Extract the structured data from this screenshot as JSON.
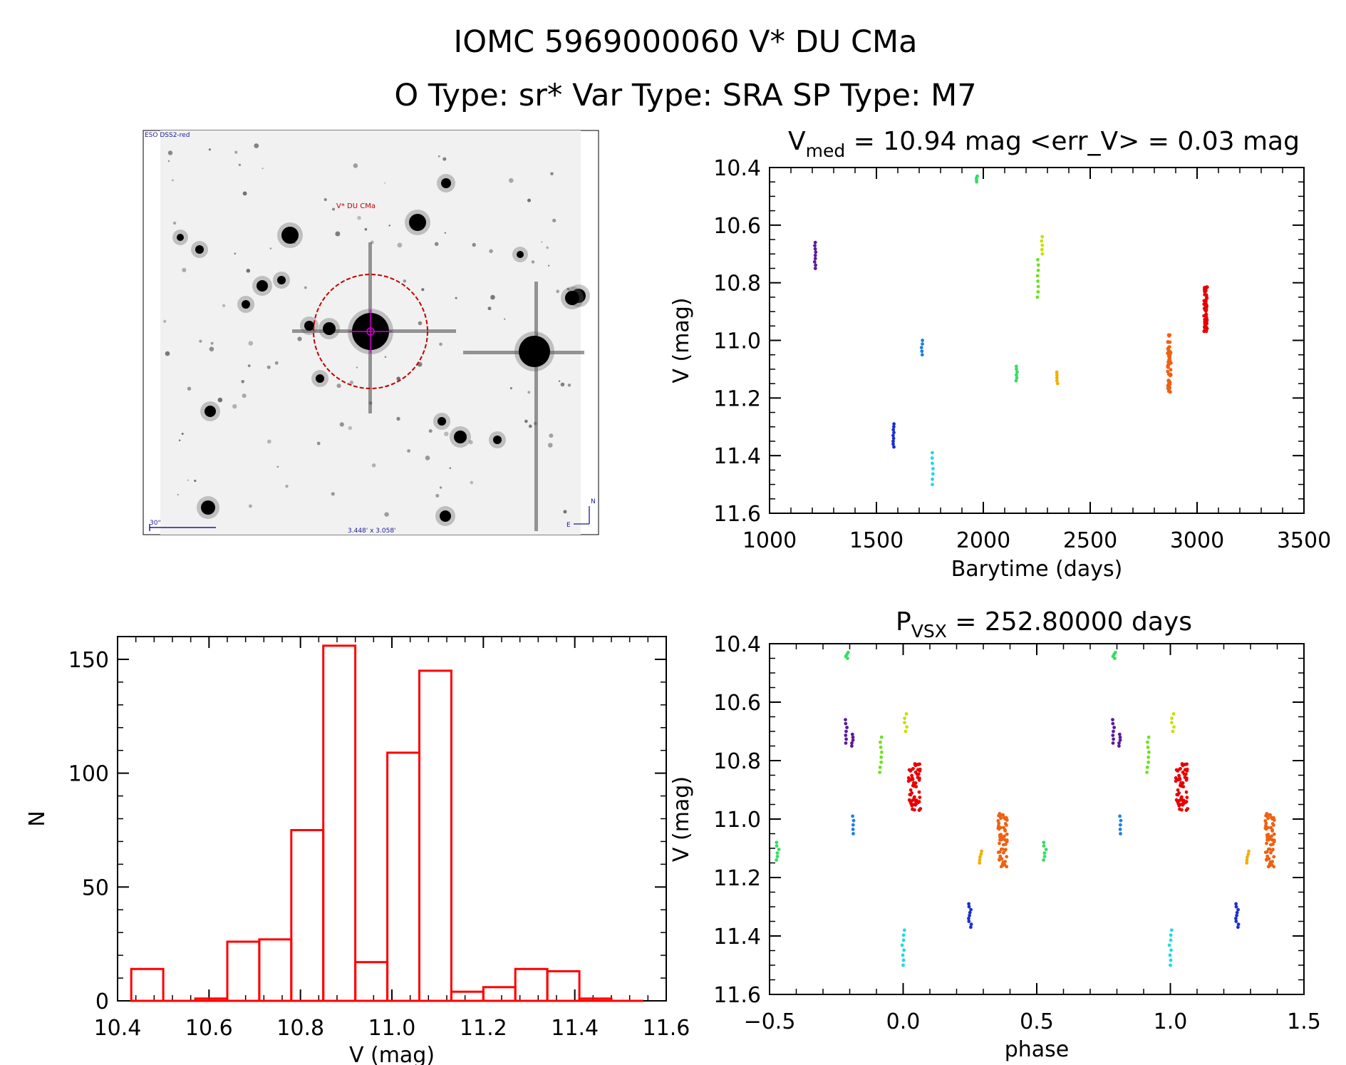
{
  "header": {
    "object_line": "IOMC 5969000060   V* DU CMa",
    "type_line": "O Type: sr*  Var Type: SRA  SP Type: M7"
  },
  "finder": {
    "survey_label": "ESO DSS2-red",
    "target_label": "V* DU CMa",
    "scale_label": "30\"",
    "fov_label": "3.448' x 3.058'",
    "north_label": "N",
    "east_label": "E"
  },
  "colors": {
    "hist": "#ff0000",
    "circle": "#c00000",
    "crosshair": "#d000d0"
  },
  "chart_data": [
    {
      "id": "lightcurve",
      "type": "scatter",
      "title_sym": "V",
      "title_sub": "med",
      "title_rest": " = 10.94 mag <err_V> = 0.03 mag",
      "xlabel": "Barytime (days)",
      "ylabel": "V (mag)",
      "xlim": [
        1000,
        3500
      ],
      "ylim": [
        10.4,
        11.6
      ],
      "y_inverted": true,
      "xticks": [
        1000,
        1500,
        2000,
        2500,
        3000,
        3500
      ],
      "xtick_labels": [
        "1000",
        "1500",
        "2000",
        "2500",
        "3000",
        "3500"
      ],
      "yticks": [
        10.4,
        10.6,
        10.8,
        11.0,
        11.2,
        11.4,
        11.6
      ],
      "ytick_labels": [
        "10.4",
        "10.6",
        "10.8",
        "11.0",
        "11.2",
        "11.4",
        "11.6"
      ],
      "series": [
        {
          "name": "season-1",
          "color": "#5a1a9a",
          "t": 1213,
          "v_min": 10.66,
          "v_max": 10.75,
          "n": 9
        },
        {
          "name": "season-2",
          "color": "#1a2fd0",
          "t": 1580,
          "v_min": 11.29,
          "v_max": 11.37,
          "n": 9
        },
        {
          "name": "season-3",
          "color": "#1e7ee8",
          "t": 1713,
          "v_min": 11.0,
          "v_max": 11.05,
          "n": 5
        },
        {
          "name": "season-4",
          "color": "#20d8e8",
          "t": 1762,
          "v_min": 11.39,
          "v_max": 11.5,
          "n": 7
        },
        {
          "name": "season-5",
          "color": "#30e060",
          "t": 1970,
          "v_min": 10.43,
          "v_max": 10.45,
          "n": 4
        },
        {
          "name": "season-6",
          "color": "#30e060",
          "t": 2155,
          "v_min": 11.09,
          "v_max": 11.14,
          "n": 6
        },
        {
          "name": "season-7",
          "color": "#70e020",
          "t": 2255,
          "v_min": 10.72,
          "v_max": 10.85,
          "n": 8
        },
        {
          "name": "season-8",
          "color": "#c8e000",
          "t": 2275,
          "v_min": 10.64,
          "v_max": 10.7,
          "n": 5
        },
        {
          "name": "season-9",
          "color": "#f0b000",
          "t": 2345,
          "v_min": 11.11,
          "v_max": 11.15,
          "n": 5
        },
        {
          "name": "season-10",
          "color": "#f06010",
          "t": 2870,
          "v_min": 10.98,
          "v_max": 11.18,
          "n": 60
        },
        {
          "name": "season-11",
          "color": "#e80000",
          "t": 3040,
          "v_min": 10.81,
          "v_max": 10.97,
          "n": 60
        }
      ]
    },
    {
      "id": "histogram",
      "type": "bar",
      "title": "",
      "xlabel": "V (mag)",
      "ylabel": "N",
      "xlim": [
        10.4,
        11.6
      ],
      "ylim": [
        0,
        160
      ],
      "xticks": [
        10.4,
        10.6,
        10.8,
        11.0,
        11.2,
        11.4,
        11.6
      ],
      "xtick_labels": [
        "10.4",
        "10.6",
        "10.8",
        "11.0",
        "11.2",
        "11.4",
        "11.6"
      ],
      "yticks": [
        0,
        50,
        100,
        150
      ],
      "ytick_labels": [
        "0",
        "50",
        "100",
        "150"
      ],
      "bin_edges": [
        10.43,
        10.5,
        10.57,
        10.64,
        10.71,
        10.78,
        10.85,
        10.92,
        10.99,
        11.06,
        11.13,
        11.2,
        11.27,
        11.34,
        11.41,
        11.48,
        11.55
      ],
      "values": [
        14,
        0,
        1,
        26,
        27,
        75,
        156,
        17,
        109,
        145,
        4,
        6,
        14,
        13,
        1,
        0
      ]
    },
    {
      "id": "phased",
      "type": "scatter",
      "title_sym": "P",
      "title_sub": "VSX",
      "title_rest": " = 252.80000 days",
      "xlabel": "phase",
      "ylabel": "V (mag)",
      "xlim": [
        -0.5,
        1.5
      ],
      "ylim": [
        10.4,
        11.6
      ],
      "y_inverted": true,
      "xticks": [
        -0.5,
        0.0,
        0.5,
        1.0,
        1.5
      ],
      "xtick_labels": [
        "−0.5",
        "0.0",
        "0.5",
        "1.0",
        "1.5"
      ],
      "yticks": [
        10.4,
        10.6,
        10.8,
        11.0,
        11.2,
        11.4,
        11.6
      ],
      "ytick_labels": [
        "10.4",
        "10.6",
        "10.8",
        "11.0",
        "11.2",
        "11.4",
        "11.6"
      ],
      "series": [
        {
          "name": "season-1a",
          "color": "#5a1a9a",
          "phase": -0.215,
          "v_min": 10.66,
          "v_max": 10.74,
          "n": 7
        },
        {
          "name": "season-1b",
          "color": "#5a1a9a",
          "phase": -0.19,
          "v_min": 10.71,
          "v_max": 10.75,
          "n": 5
        },
        {
          "name": "season-2",
          "color": "#1a2fd0",
          "phase": 0.25,
          "v_min": 11.29,
          "v_max": 11.37,
          "n": 9
        },
        {
          "name": "season-3",
          "color": "#1e7ee8",
          "phase": -0.19,
          "v_min": 10.99,
          "v_max": 11.05,
          "n": 5
        },
        {
          "name": "season-4",
          "color": "#20d8e8",
          "phase": 0.0,
          "v_min": 11.38,
          "v_max": 11.5,
          "n": 8
        },
        {
          "name": "season-5",
          "color": "#30e060",
          "phase": -0.21,
          "v_min": 10.43,
          "v_max": 10.45,
          "n": 4
        },
        {
          "name": "season-6",
          "color": "#30e060",
          "phase": 0.53,
          "v_min": 11.08,
          "v_max": 11.14,
          "n": 6
        },
        {
          "name": "season-7",
          "color": "#70e020",
          "phase": -0.085,
          "v_min": 10.72,
          "v_max": 10.84,
          "n": 8
        },
        {
          "name": "season-8",
          "color": "#c8e000",
          "phase": 0.01,
          "v_min": 10.64,
          "v_max": 10.7,
          "n": 5
        },
        {
          "name": "season-9",
          "color": "#f0b000",
          "phase": 0.29,
          "v_min": 11.11,
          "v_max": 11.15,
          "n": 5
        },
        {
          "name": "season-10",
          "color": "#f06010",
          "phase_min": 0.355,
          "phase_max": 0.39,
          "v_min": 10.98,
          "v_max": 11.17,
          "n": 60
        },
        {
          "name": "season-11",
          "color": "#e80000",
          "phase_min": 0.02,
          "phase_max": 0.065,
          "v_min": 10.81,
          "v_max": 10.97,
          "n": 60
        }
      ]
    }
  ]
}
